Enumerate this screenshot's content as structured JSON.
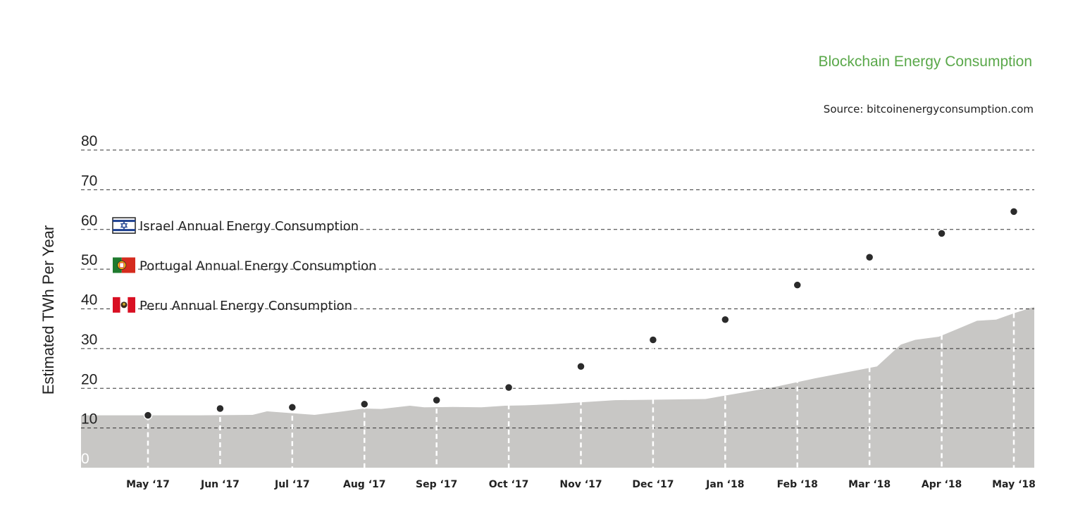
{
  "header": {
    "title": "Blockchain Energy Consumption",
    "source": "Source: bitcoinenergyconsumption.com"
  },
  "chart_data": {
    "type": "area",
    "title": "Blockchain Energy Consumption",
    "ylabel": "Estimated TWh Per Year",
    "xlabel": "",
    "ylim": [
      0,
      80
    ],
    "yticks": [
      "0",
      "10",
      "20",
      "30",
      "40",
      "50",
      "60",
      "70",
      "80"
    ],
    "grid": true,
    "area_color": "#c8c7c5",
    "point_color": "#2b2b2b",
    "markers": {
      "labels": [
        "May ‘17",
        "Jun ‘17",
        "Jul ‘17",
        "Aug ‘17",
        "Sep ‘17",
        "Oct ‘17",
        "Nov ‘17",
        "Dec ‘17",
        "Jan ‘18",
        "Feb ‘18",
        "Mar ‘18",
        "Apr ‘18",
        "May ‘18"
      ],
      "values": [
        13.2,
        14.9,
        15.2,
        16.0,
        17.0,
        20.2,
        25.5,
        32.2,
        37.3,
        46.0,
        53.0,
        59.0,
        64.5
      ]
    },
    "series": [
      {
        "x": [
          0,
          0.1,
          0.125,
          0.18,
          0.195,
          0.245,
          0.275,
          0.297,
          0.315,
          0.345,
          0.36,
          0.39,
          0.42,
          0.445,
          0.465,
          0.495,
          0.56,
          0.655,
          0.725,
          0.77,
          0.835,
          0.86,
          0.875,
          0.9,
          0.92,
          0.94,
          0.96,
          0.98,
          1.0
        ],
        "values": [
          13.2,
          13.2,
          13.2,
          13.3,
          14.2,
          13.3,
          14.2,
          14.9,
          14.8,
          15.6,
          15.2,
          15.3,
          15.2,
          15.6,
          15.7,
          16.0,
          17.0,
          17.3,
          20.2,
          22.5,
          25.5,
          31.0,
          32.2,
          33.0,
          35.0,
          37.0,
          37.3,
          39.0,
          40.5
        ]
      }
    ],
    "reference_lines": [
      {
        "label": "Israel Annual Energy Consumption",
        "value": 61.0,
        "flag": "israel-flag-icon"
      },
      {
        "label": "Portugal Annual Energy Consumption",
        "value": 51.0,
        "flag": "portugal-flag-icon"
      },
      {
        "label": "Peru Annual Energy Consumption",
        "value": 41.0,
        "flag": "peru-flag-icon"
      }
    ]
  }
}
